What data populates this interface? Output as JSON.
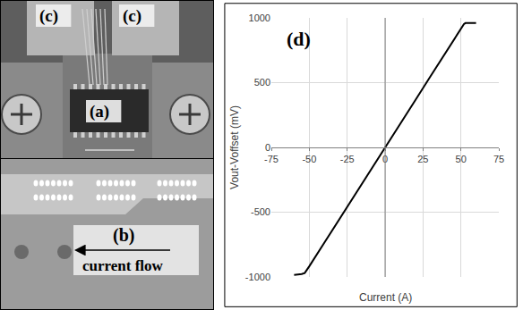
{
  "panels": {
    "a": "(a)",
    "b": "(b)",
    "c": [
      "(c)",
      "(c)"
    ],
    "current_flow": "current flow"
  },
  "chart_data": {
    "type": "line",
    "annotation": "(d)",
    "x_label": "Current (A)",
    "y_label": "Vout-Voffset (mV)",
    "x": [
      -60,
      -57,
      -55,
      -53,
      -50,
      -40,
      -30,
      -20,
      -10,
      0,
      10,
      20,
      30,
      40,
      50,
      52,
      53,
      55,
      58,
      60
    ],
    "values": [
      -985,
      -982,
      -978,
      -970,
      -918,
      -735,
      -550,
      -367,
      -183,
      0,
      183,
      366,
      550,
      733,
      915,
      952,
      960,
      962,
      960,
      960
    ],
    "color": "#000000",
    "xlim": [
      -75,
      75
    ],
    "xticks": [
      -75,
      -50,
      -25,
      0,
      25,
      50,
      75
    ],
    "ylim": [
      -1000,
      1000
    ],
    "yticks": [
      -1000,
      -500,
      0,
      500,
      1000
    ],
    "grid": true
  }
}
